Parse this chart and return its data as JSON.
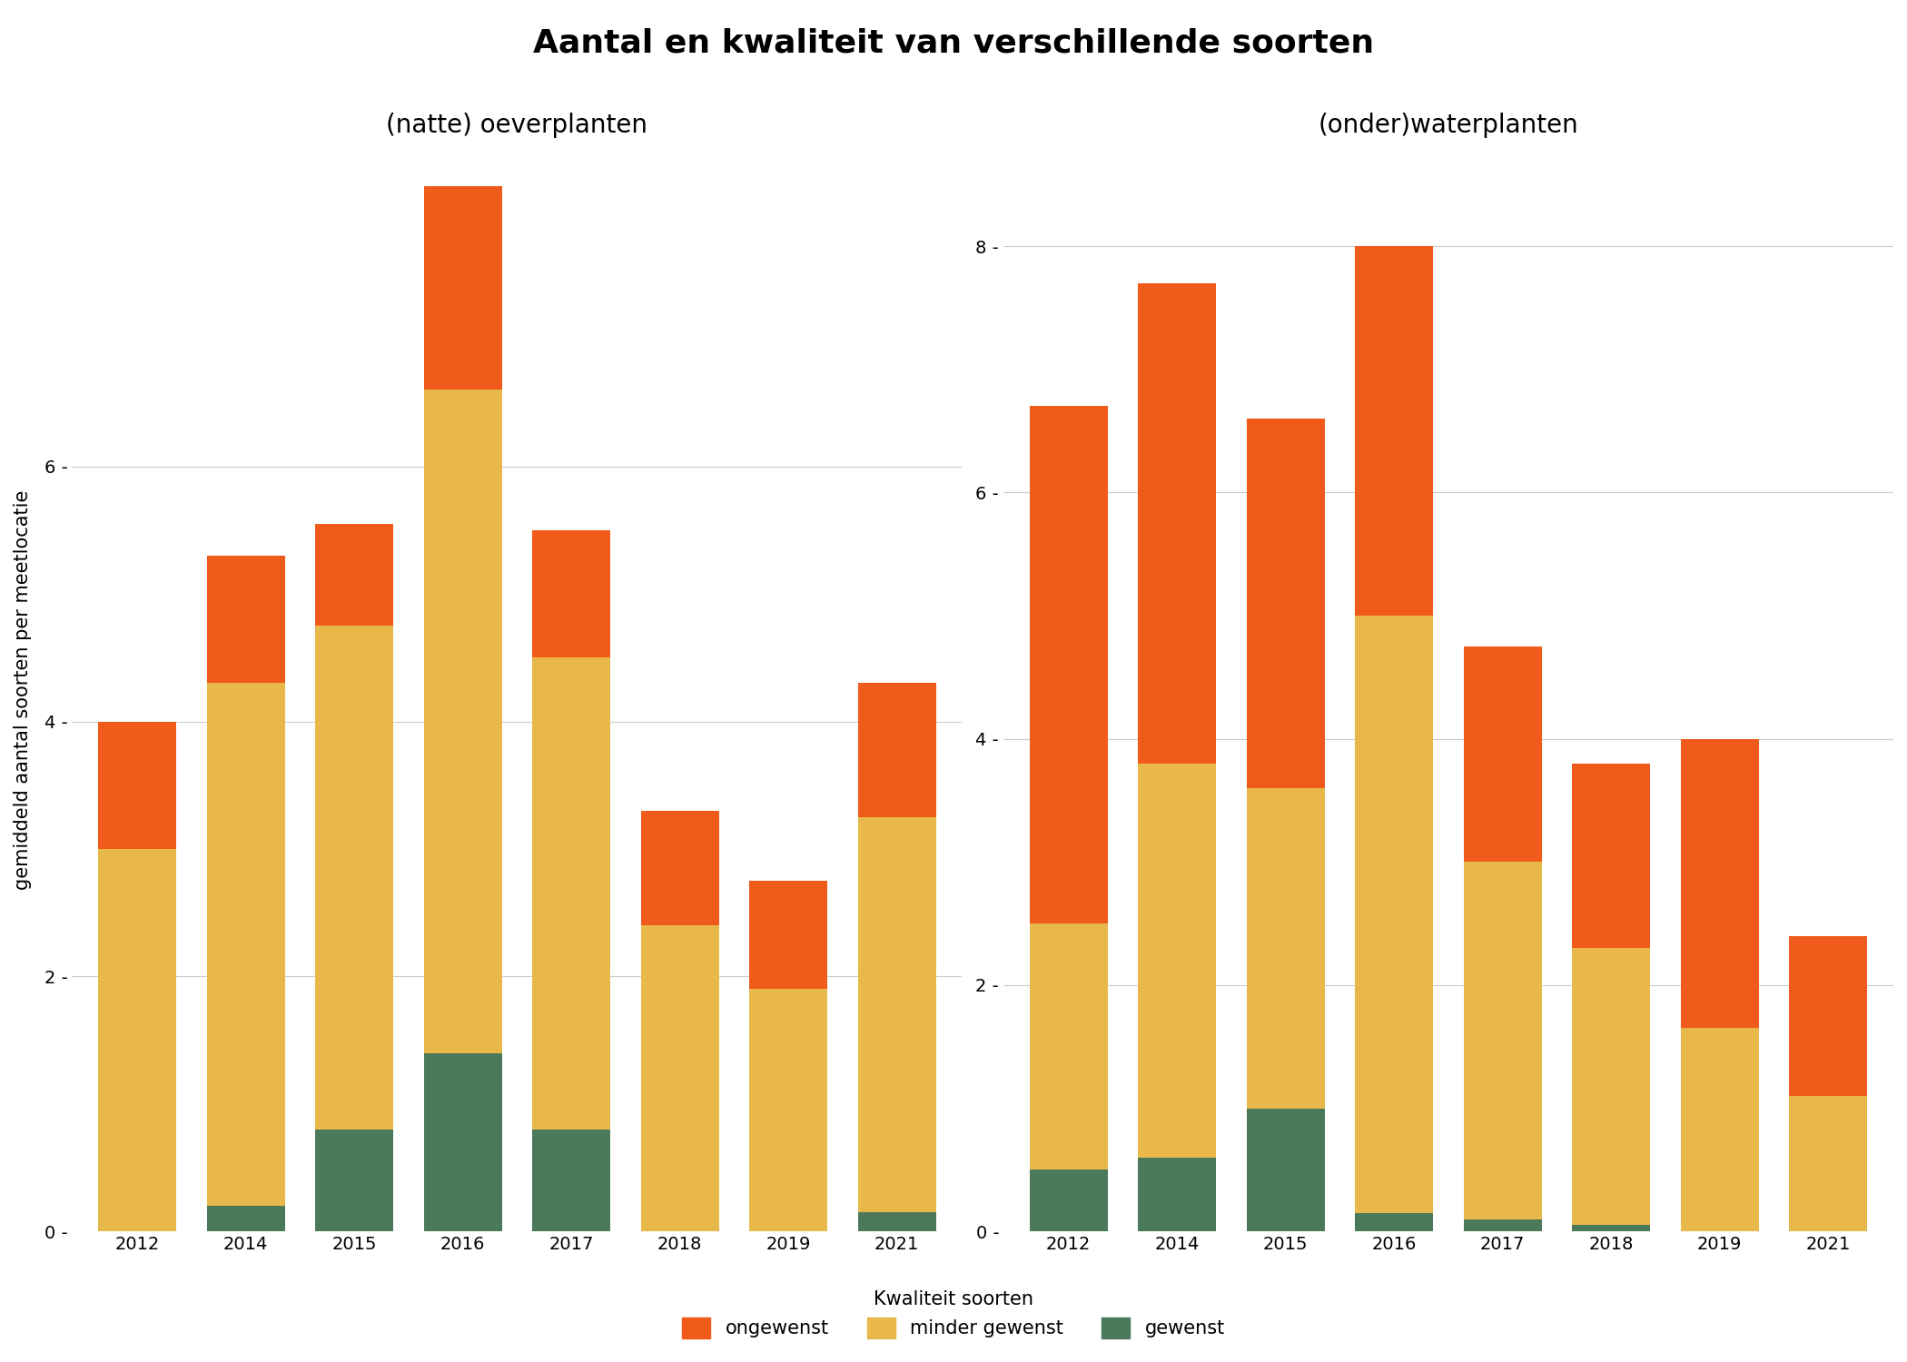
{
  "title": "Aantal en kwaliteit van verschillende soorten",
  "subtitle_left": "(natte) oeverplanten",
  "subtitle_right": "(onder)waterplanten",
  "ylabel": "gemiddeld aantal soorten per meetlocatie",
  "years": [
    "2012",
    "2014",
    "2015",
    "2016",
    "2017",
    "2018",
    "2019",
    "2021"
  ],
  "left": {
    "gewenst": [
      0.0,
      0.2,
      0.8,
      1.4,
      0.8,
      0.0,
      0.0,
      0.15
    ],
    "minder_gewenst": [
      3.0,
      4.1,
      3.95,
      5.2,
      3.7,
      2.4,
      1.9,
      3.1
    ],
    "ongewenst": [
      1.0,
      1.0,
      0.8,
      1.6,
      1.0,
      0.9,
      0.85,
      1.05
    ]
  },
  "right": {
    "gewenst": [
      0.5,
      0.6,
      1.0,
      0.15,
      0.1,
      0.05,
      0.0,
      0.0
    ],
    "minder_gewenst": [
      2.0,
      3.2,
      2.6,
      4.85,
      2.9,
      2.25,
      1.65,
      1.1
    ],
    "ongewenst": [
      4.2,
      3.9,
      3.0,
      3.0,
      1.75,
      1.5,
      2.35,
      1.3
    ]
  },
  "ylim_left": [
    0,
    8.5
  ],
  "ylim_right": [
    0,
    8.8
  ],
  "yticks_left": [
    0,
    2,
    4,
    6
  ],
  "yticks_right": [
    0,
    2,
    4,
    6,
    8
  ],
  "colors": {
    "ongewenst": "#F05A1A",
    "minder_gewenst": "#E8B84B",
    "gewenst": "#4A7A5A"
  },
  "legend_title": "Kwaliteit soorten",
  "background_color": "#FFFFFF",
  "grid_color": "#CCCCCC",
  "title_fontsize": 26,
  "subtitle_fontsize": 20,
  "axis_fontsize": 15,
  "tick_fontsize": 14,
  "legend_fontsize": 15,
  "legend_title_fontsize": 15
}
